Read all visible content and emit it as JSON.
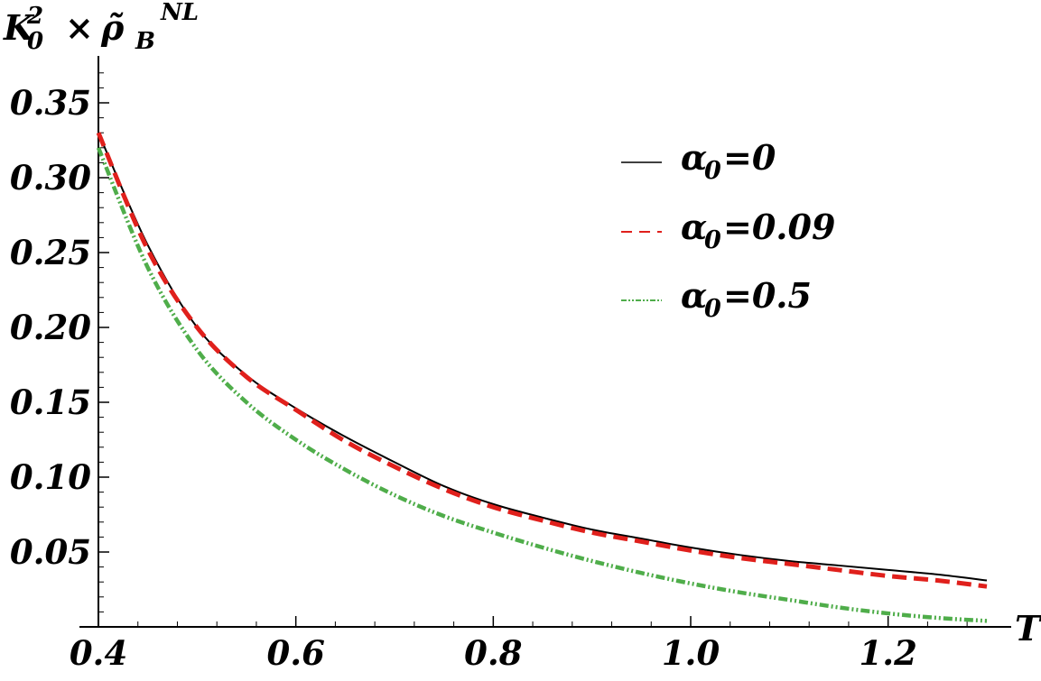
{
  "chart_data": {
    "type": "line",
    "title": "",
    "xlabel": "T",
    "ylabel": {
      "base": "K",
      "base_sub": "0",
      "base_sup": "2",
      "times": "×",
      "rho": "ρ̃",
      "rho_sub": "B",
      "rho_sup": "NL"
    },
    "xlim": [
      0.4,
      1.3
    ],
    "ylim": [
      0.0,
      0.38
    ],
    "x_ticks": [
      0.4,
      0.6,
      0.8,
      1.0,
      1.2
    ],
    "x_tick_labels": [
      "0.4",
      "0.6",
      "0.8",
      "1.0",
      "1.2"
    ],
    "y_ticks": [
      0.05,
      0.1,
      0.15,
      0.2,
      0.25,
      0.3,
      0.35
    ],
    "y_tick_labels": [
      "0.05",
      "0.10",
      "0.15",
      "0.20",
      "0.25",
      "0.30",
      "0.35"
    ],
    "grid": false,
    "legend_position": "top-right",
    "x": [
      0.4,
      0.45,
      0.5,
      0.55,
      0.6,
      0.65,
      0.7,
      0.75,
      0.8,
      0.85,
      0.9,
      0.95,
      1.0,
      1.05,
      1.1,
      1.15,
      1.2,
      1.25,
      1.3
    ],
    "series": [
      {
        "name": "0",
        "legend_symbol": "α",
        "legend_sub": "0",
        "legend_eq": "=0",
        "color": "#000000",
        "style": "solid",
        "values": [
          0.33,
          0.255,
          0.2,
          0.168,
          0.146,
          0.127,
          0.11,
          0.094,
          0.082,
          0.073,
          0.065,
          0.059,
          0.053,
          0.048,
          0.044,
          0.041,
          0.038,
          0.035,
          0.031
        ]
      },
      {
        "name": "0.09",
        "legend_symbol": "α",
        "legend_sub": "0",
        "legend_eq": "=0.09",
        "color": "#e0201c",
        "style": "dashed",
        "values": [
          0.33,
          0.252,
          0.2,
          0.167,
          0.145,
          0.124,
          0.107,
          0.092,
          0.08,
          0.071,
          0.063,
          0.057,
          0.051,
          0.046,
          0.042,
          0.038,
          0.034,
          0.031,
          0.027
        ]
      },
      {
        "name": "0.5",
        "legend_symbol": "α",
        "legend_sub": "0",
        "legend_eq": "=0.5",
        "color": "#4fad4a",
        "style": "dashdot",
        "values": [
          0.32,
          0.24,
          0.185,
          0.15,
          0.125,
          0.105,
          0.088,
          0.074,
          0.063,
          0.053,
          0.044,
          0.036,
          0.029,
          0.023,
          0.018,
          0.013,
          0.009,
          0.006,
          0.004
        ]
      }
    ]
  }
}
